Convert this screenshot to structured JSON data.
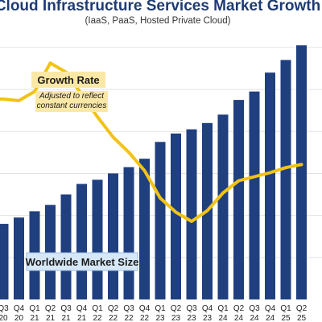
{
  "chart_data": {
    "type": "bar",
    "title": "Cloud Infrastructure Services Market Growth",
    "subtitle": "(IaaS, PaaS, Hosted Private Cloud)",
    "categories": [
      {
        "q": "Q3",
        "y": "20"
      },
      {
        "q": "Q4",
        "y": "20"
      },
      {
        "q": "Q1",
        "y": "21"
      },
      {
        "q": "Q2",
        "y": "21"
      },
      {
        "q": "Q3",
        "y": "21"
      },
      {
        "q": "Q4",
        "y": "21"
      },
      {
        "q": "Q1",
        "y": "22"
      },
      {
        "q": "Q2",
        "y": "22"
      },
      {
        "q": "Q3",
        "y": "22"
      },
      {
        "q": "Q4",
        "y": "22"
      },
      {
        "q": "Q1",
        "y": "23"
      },
      {
        "q": "Q2",
        "y": "23"
      },
      {
        "q": "Q3",
        "y": "23"
      },
      {
        "q": "Q4",
        "y": "23"
      },
      {
        "q": "Q1",
        "y": "24"
      },
      {
        "q": "Q2",
        "y": "24"
      },
      {
        "q": "Q3",
        "y": "24"
      },
      {
        "q": "Q4",
        "y": "24"
      },
      {
        "q": "Q1",
        "y": "25"
      },
      {
        "q": "Q2",
        "y": "25"
      }
    ],
    "series": [
      {
        "name": "Worldwide Market Size",
        "type": "bar",
        "values": [
          36,
          39,
          42,
          45,
          50,
          55,
          57,
          60,
          63,
          67,
          75,
          79,
          81,
          84,
          88,
          95,
          99,
          108,
          114,
          121
        ]
      },
      {
        "name": "Growth Rate",
        "note": "Adjusted to reflect constant currencies",
        "type": "line",
        "values": [
          34.5,
          34.2,
          36.0,
          41.6,
          39.8,
          35.4,
          31.0,
          27.0,
          24.0,
          20.4,
          15.0,
          12.2,
          10.4,
          12.5,
          16.0,
          18.4,
          19.2,
          20.0,
          21.0,
          21.6
        ]
      }
    ],
    "bar_color": "#1f3f7f",
    "line_color": "#f2c314",
    "label_bg_color": "#fbe8a6",
    "market_label_bg_color": "#d6e8f8",
    "bar_ylim": [
      0,
      128
    ],
    "line_ylim": [
      -5,
      48
    ],
    "grid": true
  }
}
